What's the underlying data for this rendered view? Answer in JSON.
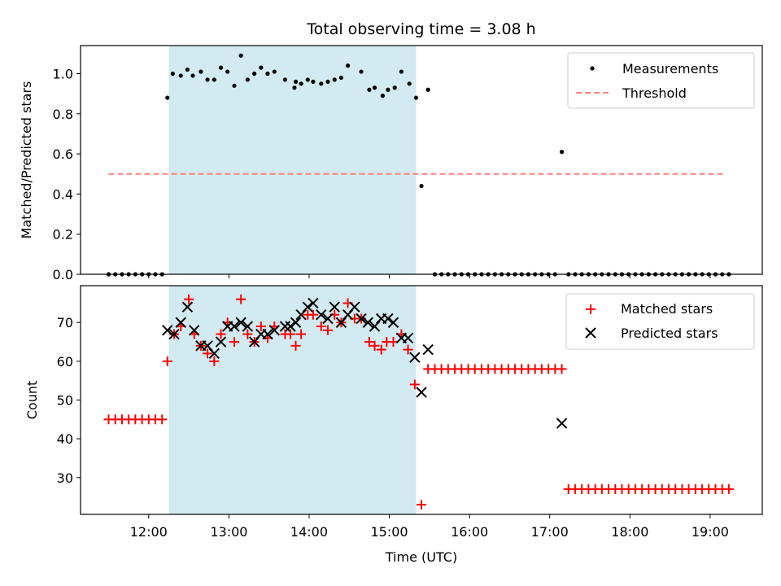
{
  "chart_data": {
    "title": "Total observing time = 3.08 h",
    "xlabel": "Time (UTC)",
    "xticks": [
      "12:00",
      "13:00",
      "14:00",
      "15:00",
      "16:00",
      "17:00",
      "18:00",
      "19:00"
    ],
    "xlim_hours": [
      11.15,
      19.65
    ],
    "shaded_interval_hours": [
      12.25,
      15.333
    ],
    "shade_color": "#add8e6",
    "panels": [
      {
        "type": "scatter",
        "ylabel": "Matched/Predicted stars",
        "ylim": [
          0,
          1.14
        ],
        "yticks": [
          0.0,
          0.2,
          0.4,
          0.6,
          0.8,
          1.0
        ],
        "legend_position": "upper right",
        "legend": [
          "Measurements",
          "Threshold"
        ],
        "threshold": {
          "name": "Threshold",
          "value": 0.5,
          "x_range": [
            11.5,
            19.2
          ],
          "color": "#ff7f7f"
        },
        "series": [
          {
            "name": "Measurements",
            "color": "#000000",
            "marker": "dot",
            "x": [
              11.5,
              11.583,
              11.667,
              11.75,
              11.833,
              11.917,
              12.0,
              12.083,
              12.167,
              12.233,
              12.3,
              12.4,
              12.483,
              12.55,
              12.65,
              12.733,
              12.817,
              12.9,
              12.983,
              13.067,
              13.15,
              13.233,
              13.317,
              13.4,
              13.483,
              13.567,
              13.7,
              13.817,
              13.833,
              13.9,
              13.983,
              14.05,
              14.15,
              14.233,
              14.317,
              14.4,
              14.483,
              14.65,
              14.75,
              14.817,
              14.917,
              14.983,
              15.067,
              15.15,
              15.25,
              15.333,
              15.4,
              15.483,
              15.567,
              15.65,
              15.733,
              15.817,
              15.9,
              15.983,
              16.067,
              16.15,
              16.233,
              16.317,
              16.4,
              16.483,
              16.567,
              16.65,
              16.733,
              16.817,
              16.9,
              16.983,
              17.067,
              17.15,
              17.233,
              17.317,
              17.4,
              17.483,
              17.567,
              17.65,
              17.733,
              17.817,
              17.9,
              17.983,
              18.067,
              18.15,
              18.233,
              18.317,
              18.4,
              18.483,
              18.567,
              18.65,
              18.733,
              18.817,
              18.9,
              18.983,
              19.067,
              19.15,
              19.233
            ],
            "y": [
              0,
              0,
              0,
              0,
              0,
              0,
              0,
              0,
              0,
              0.88,
              1.0,
              0.99,
              1.02,
              0.99,
              1.01,
              0.97,
              0.97,
              1.03,
              1.01,
              0.94,
              1.09,
              0.97,
              1.0,
              1.03,
              1.0,
              1.01,
              0.97,
              0.93,
              0.96,
              0.95,
              0.97,
              0.96,
              0.95,
              0.96,
              0.97,
              0.98,
              1.04,
              1.01,
              0.92,
              0.93,
              0.89,
              0.92,
              0.93,
              1.01,
              0.95,
              0.88,
              0.44,
              0.92,
              0,
              0,
              0,
              0,
              0,
              0,
              0,
              0,
              0,
              0,
              0,
              0,
              0,
              0,
              0,
              0,
              0,
              0,
              0,
              0.61,
              0,
              0,
              0,
              0,
              0,
              0,
              0,
              0,
              0,
              0,
              0,
              0,
              0,
              0,
              0,
              0,
              0,
              0,
              0,
              0,
              0,
              0,
              0,
              0,
              0
            ]
          }
        ]
      },
      {
        "type": "scatter",
        "ylabel": "Count",
        "ylim": [
          20.5,
          79.5
        ],
        "yticks": [
          30,
          40,
          50,
          60,
          70
        ],
        "legend_position": "upper right",
        "legend": [
          "Matched stars",
          "Predicted stars"
        ],
        "series": [
          {
            "name": "Matched stars",
            "color": "#ff0000",
            "marker": "plus",
            "x": [
              11.5,
              11.583,
              11.667,
              11.75,
              11.833,
              11.917,
              12.0,
              12.083,
              12.167,
              12.233,
              12.317,
              12.4,
              12.5,
              12.567,
              12.65,
              12.733,
              12.817,
              12.9,
              12.983,
              13.067,
              13.15,
              13.233,
              13.317,
              13.4,
              13.483,
              13.567,
              13.7,
              13.767,
              13.833,
              13.9,
              13.983,
              14.05,
              14.15,
              14.233,
              14.317,
              14.4,
              14.483,
              14.567,
              14.65,
              14.75,
              14.817,
              14.9,
              14.967,
              15.05,
              15.15,
              15.233,
              15.317,
              15.4,
              15.483,
              15.567,
              15.65,
              15.733,
              15.817,
              15.9,
              15.983,
              16.067,
              16.15,
              16.233,
              16.317,
              16.4,
              16.483,
              16.567,
              16.65,
              16.733,
              16.817,
              16.9,
              16.983,
              17.067,
              17.15,
              17.233,
              17.317,
              17.4,
              17.483,
              17.567,
              17.65,
              17.733,
              17.817,
              17.9,
              17.983,
              18.067,
              18.15,
              18.233,
              18.317,
              18.4,
              18.483,
              18.567,
              18.65,
              18.733,
              18.817,
              18.9,
              18.983,
              19.067,
              19.15,
              19.233
            ],
            "y": [
              45,
              45,
              45,
              45,
              45,
              45,
              45,
              45,
              45,
              60,
              67,
              69,
              76,
              67,
              64,
              62,
              60,
              67,
              70,
              65,
              76,
              67,
              65,
              69,
              66,
              69,
              67,
              67,
              64,
              67,
              72,
              72,
              69,
              68,
              72,
              70,
              75,
              71,
              71,
              65,
              64,
              63,
              65,
              65,
              67,
              63,
              54,
              23,
              58,
              58,
              58,
              58,
              58,
              58,
              58,
              58,
              58,
              58,
              58,
              58,
              58,
              58,
              58,
              58,
              58,
              58,
              58,
              58,
              58,
              27,
              27,
              27,
              27,
              27,
              27,
              27,
              27,
              27,
              27,
              27,
              27,
              27,
              27,
              27,
              27,
              27,
              27,
              27,
              27,
              27,
              27,
              27,
              27,
              27
            ]
          },
          {
            "name": "Predicted stars",
            "color": "#000000",
            "marker": "x",
            "x": [
              12.233,
              12.317,
              12.4,
              12.483,
              12.567,
              12.65,
              12.733,
              12.817,
              12.9,
              12.983,
              13.067,
              13.15,
              13.233,
              13.317,
              13.4,
              13.483,
              13.567,
              13.7,
              13.767,
              13.833,
              13.9,
              13.983,
              14.05,
              14.15,
              14.233,
              14.317,
              14.4,
              14.483,
              14.567,
              14.65,
              14.733,
              14.817,
              14.9,
              14.983,
              15.05,
              15.15,
              15.233,
              15.317,
              15.4,
              15.483,
              17.15
            ],
            "y": [
              68,
              67,
              70,
              74,
              68,
              64,
              64,
              62,
              65,
              69,
              69,
              70,
              69,
              65,
              67,
              67,
              68,
              69,
              69,
              70,
              72,
              74,
              75,
              72,
              71,
              74,
              70,
              72,
              74,
              71,
              70,
              69,
              71,
              71,
              70,
              66,
              66,
              61,
              52,
              63,
              44
            ]
          }
        ]
      }
    ]
  }
}
